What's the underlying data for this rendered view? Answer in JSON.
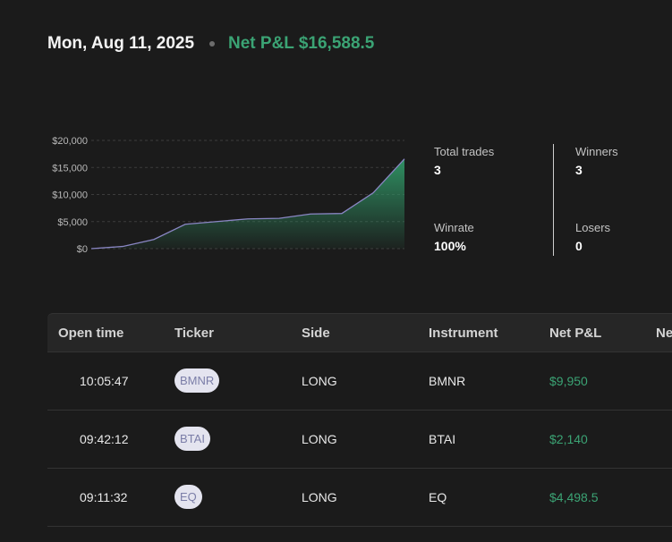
{
  "header": {
    "date": "Mon, Aug 11, 2025",
    "net_pnl": "Net P&L $16,588.5"
  },
  "chart_data": {
    "type": "area",
    "x": [
      0,
      1,
      2,
      3,
      4,
      5,
      6,
      7,
      8,
      9,
      10
    ],
    "values": [
      0,
      400,
      1700,
      4500,
      5000,
      5500,
      5600,
      6400,
      6500,
      10300,
      16588.5
    ],
    "yticks": [
      0,
      5000,
      10000,
      15000,
      20000
    ],
    "ytick_labels": [
      "$0",
      "$5,000",
      "$10,000",
      "$15,000",
      "$20,000"
    ],
    "ylim": [
      0,
      20000
    ],
    "grid": true,
    "line_color": "#8a86c4",
    "fill_color": "#2f8f62"
  },
  "stats": {
    "total_trades_label": "Total trades",
    "total_trades_value": "3",
    "winners_label": "Winners",
    "winners_value": "3",
    "winrate_label": "Winrate",
    "winrate_value": "100%",
    "losers_label": "Losers",
    "losers_value": "0"
  },
  "table": {
    "headers": [
      "Open time",
      "Ticker",
      "Side",
      "Instrument",
      "Net P&L",
      "Ne"
    ],
    "rows": [
      {
        "open_time": "10:05:47",
        "ticker": "BMNR",
        "side": "LONG",
        "instrument": "BMNR",
        "net_pnl": "$9,950"
      },
      {
        "open_time": "09:42:12",
        "ticker": "BTAI",
        "side": "LONG",
        "instrument": "BTAI",
        "net_pnl": "$2,140"
      },
      {
        "open_time": "09:11:32",
        "ticker": "EQ",
        "side": "LONG",
        "instrument": "EQ",
        "net_pnl": "$4,498.5"
      }
    ]
  },
  "colors": {
    "background": "#1b1b1b",
    "positive": "#3ba374",
    "ticker_pill_bg": "#e4e4ef",
    "ticker_pill_text": "#7b7ea8"
  }
}
